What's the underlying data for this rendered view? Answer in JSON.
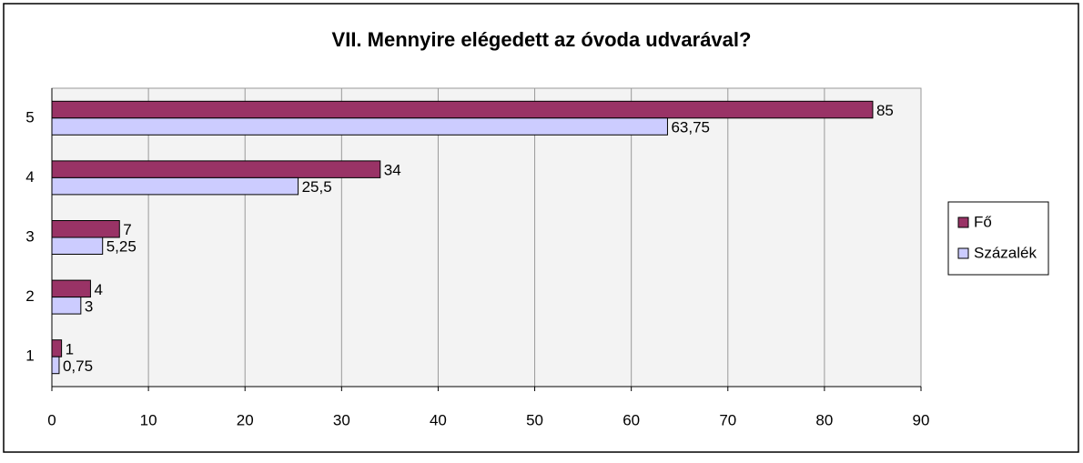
{
  "chart_data": {
    "type": "hbar",
    "title": "VII. Mennyire elégedett az óvoda udvarával?",
    "categories": [
      "5",
      "4",
      "3",
      "2",
      "1"
    ],
    "series": [
      {
        "name": "Fő",
        "color": "#993366",
        "values": [
          85,
          34,
          7,
          4,
          1
        ]
      },
      {
        "name": "Százalék",
        "color": "#ccccff",
        "values": [
          63.75,
          25.5,
          5.25,
          3,
          0.75
        ],
        "value_labels": [
          "63,75",
          "25,5",
          "5,25",
          "3",
          "0,75"
        ]
      }
    ],
    "xlim": [
      0,
      90
    ],
    "xticks": [
      0,
      10,
      20,
      30,
      40,
      50,
      60,
      70,
      80,
      90
    ],
    "grid": true,
    "legend": "right"
  }
}
